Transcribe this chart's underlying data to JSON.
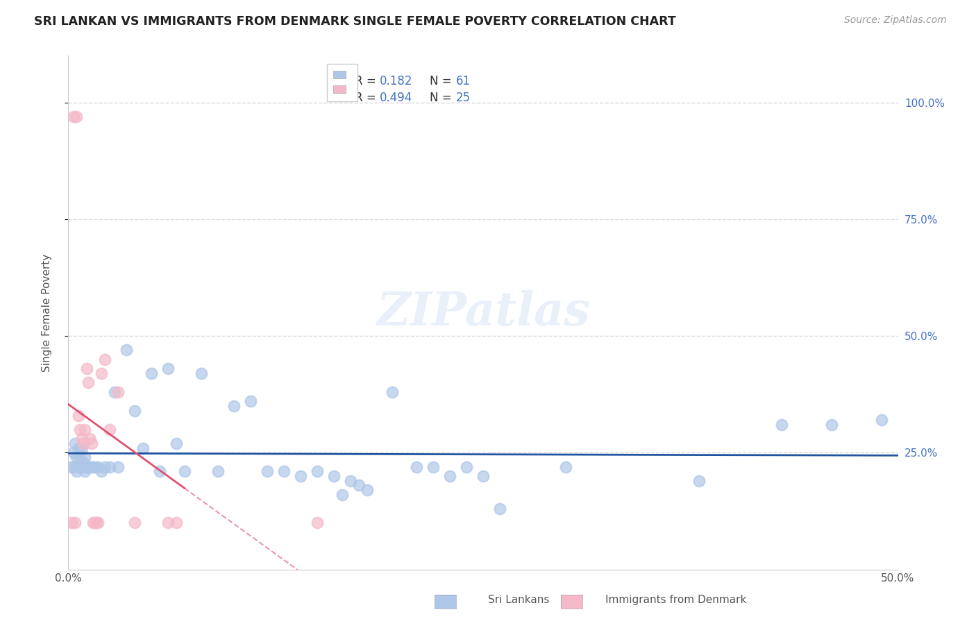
{
  "title": "SRI LANKAN VS IMMIGRANTS FROM DENMARK SINGLE FEMALE POVERTY CORRELATION CHART",
  "source": "Source: ZipAtlas.com",
  "ylabel": "Single Female Poverty",
  "xlim": [
    0,
    0.5
  ],
  "ylim": [
    0.0,
    1.1
  ],
  "ytick_positions": [
    0.25,
    0.5,
    0.75,
    1.0
  ],
  "ytick_labels_right": [
    "25.0%",
    "50.0%",
    "75.0%",
    "100.0%"
  ],
  "background_color": "#ffffff",
  "grid_color": "#d8d8e0",
  "sri_lanka_color": "#aec6e8",
  "denmark_color": "#f4b8c8",
  "sri_lanka_line_color": "#2255a0",
  "denmark_line_color": "#e05070",
  "legend_R1": "0.182",
  "legend_N1": "61",
  "legend_R2": "0.494",
  "legend_N2": "25",
  "sri_lankans_label": "Sri Lankans",
  "denmark_label": "Immigrants from Denmark",
  "sl_x": [
    0.002,
    0.003,
    0.004,
    0.004,
    0.005,
    0.005,
    0.006,
    0.006,
    0.007,
    0.007,
    0.008,
    0.008,
    0.009,
    0.009,
    0.01,
    0.01,
    0.011,
    0.012,
    0.013,
    0.014,
    0.015,
    0.016,
    0.018,
    0.02,
    0.022,
    0.025,
    0.028,
    0.03,
    0.035,
    0.04,
    0.045,
    0.05,
    0.055,
    0.06,
    0.065,
    0.07,
    0.08,
    0.09,
    0.1,
    0.11,
    0.12,
    0.13,
    0.14,
    0.15,
    0.16,
    0.165,
    0.17,
    0.175,
    0.18,
    0.195,
    0.21,
    0.22,
    0.23,
    0.24,
    0.25,
    0.26,
    0.3,
    0.38,
    0.43,
    0.46,
    0.49
  ],
  "sl_y": [
    0.22,
    0.25,
    0.22,
    0.27,
    0.21,
    0.24,
    0.22,
    0.26,
    0.22,
    0.24,
    0.22,
    0.26,
    0.22,
    0.23,
    0.21,
    0.24,
    0.22,
    0.22,
    0.22,
    0.22,
    0.22,
    0.22,
    0.22,
    0.21,
    0.22,
    0.22,
    0.38,
    0.22,
    0.47,
    0.34,
    0.26,
    0.42,
    0.21,
    0.43,
    0.27,
    0.21,
    0.42,
    0.21,
    0.35,
    0.36,
    0.21,
    0.21,
    0.2,
    0.21,
    0.2,
    0.16,
    0.19,
    0.18,
    0.17,
    0.38,
    0.22,
    0.22,
    0.2,
    0.22,
    0.2,
    0.13,
    0.22,
    0.19,
    0.31,
    0.31,
    0.32
  ],
  "dk_x": [
    0.002,
    0.003,
    0.004,
    0.005,
    0.006,
    0.007,
    0.008,
    0.009,
    0.01,
    0.011,
    0.012,
    0.013,
    0.014,
    0.015,
    0.016,
    0.017,
    0.018,
    0.02,
    0.022,
    0.025,
    0.03,
    0.04,
    0.06,
    0.065,
    0.15
  ],
  "dk_y": [
    0.1,
    0.97,
    0.1,
    0.97,
    0.33,
    0.3,
    0.28,
    0.27,
    0.3,
    0.43,
    0.4,
    0.28,
    0.27,
    0.1,
    0.1,
    0.1,
    0.1,
    0.42,
    0.45,
    0.3,
    0.38,
    0.1,
    0.1,
    0.1,
    0.1
  ],
  "dk_line_x0": 0.0,
  "dk_line_x1": 0.07,
  "dk_line_xdash_end": 0.17
}
